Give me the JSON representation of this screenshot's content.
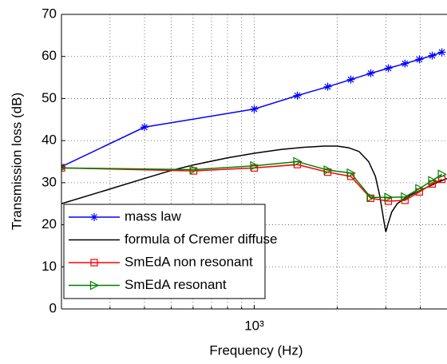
{
  "chart_data": {
    "type": "line",
    "xlabel": "Frequency (Hz)",
    "ylabel": "Transmission loss (dB)",
    "xscale": "log",
    "xlim": [
      200,
      5000
    ],
    "ylim": [
      0,
      70
    ],
    "xticks": [
      {
        "value": 1000,
        "label": "10³"
      }
    ],
    "xminor": [
      300,
      400,
      500,
      600,
      700,
      800,
      900,
      2000,
      3000,
      4000
    ],
    "yticks": [
      0,
      10,
      20,
      30,
      40,
      50,
      60,
      70
    ],
    "grid": true,
    "legend": "lower left",
    "series": [
      {
        "name": "mass law",
        "color": "#0000ff",
        "marker": "star",
        "x": [
          200,
          400,
          1000,
          1433,
          1847,
          2240,
          2645,
          3064,
          3520,
          3970,
          4420,
          4790
        ],
        "values": [
          33.8,
          43.2,
          47.5,
          50.7,
          52.8,
          54.5,
          56,
          57.2,
          58.3,
          59.3,
          60.2,
          61
        ]
      },
      {
        "name": "formula of Cremer diffuse",
        "color": "#000000",
        "marker": "none",
        "x": [
          200,
          300,
          400,
          500,
          600,
          800,
          1000,
          1250,
          1500,
          1800,
          2000,
          2200,
          2400,
          2600,
          2750,
          2850,
          2950,
          3000,
          3050,
          3150,
          3300,
          3500,
          3800,
          4200,
          4600,
          5000
        ],
        "values": [
          25,
          28.5,
          31,
          32.9,
          34.2,
          35.9,
          37,
          37.9,
          38.4,
          38.7,
          38.7,
          38.3,
          37.4,
          35,
          31.5,
          27,
          21,
          18.3,
          20,
          23,
          25,
          26.2,
          27.5,
          28.8,
          30,
          31
        ]
      },
      {
        "name": "SmEdA non resonant",
        "color": "#ff0000",
        "marker": "square",
        "x": [
          200,
          603,
          1000,
          1433,
          1847,
          2240,
          2645,
          3064,
          3520,
          3970,
          4420,
          4790
        ],
        "values": [
          33.5,
          32.8,
          33.5,
          34.3,
          32.5,
          31.5,
          26.3,
          25.6,
          25.8,
          27.8,
          29.7,
          30.8
        ]
      },
      {
        "name": "SmEdA resonant",
        "color": "#008000",
        "marker": "triangle",
        "x": [
          200,
          603,
          1000,
          1433,
          1847,
          2240,
          2645,
          3064,
          3520,
          3970,
          4420,
          4790
        ],
        "values": [
          33.5,
          33.1,
          34,
          35,
          33,
          32.3,
          26.5,
          26.5,
          26.6,
          28.6,
          30.5,
          32
        ]
      }
    ]
  }
}
